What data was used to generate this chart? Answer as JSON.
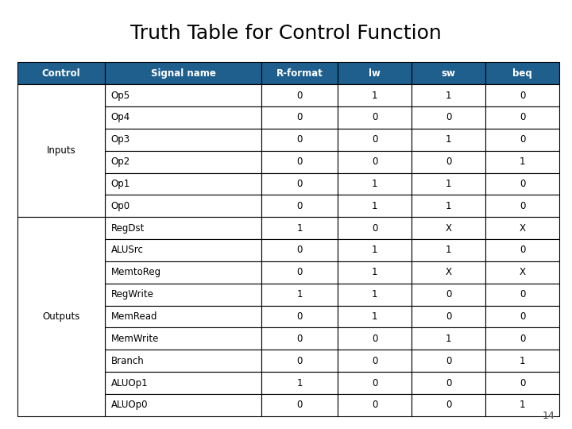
{
  "title": "Truth Table for Control Function",
  "page_number": "14",
  "header_bg": "#1e5f8e",
  "header_fg": "#ffffff",
  "cell_bg": "#ffffff",
  "border_color": "#000000",
  "title_color": "#000000",
  "col_headers": [
    "Control",
    "Signal name",
    "R-format",
    "lw",
    "sw",
    "beq"
  ],
  "col_props": [
    0.155,
    0.275,
    0.135,
    0.13,
    0.13,
    0.13
  ],
  "rows": [
    {
      "signal": "Op5",
      "rformat": "0",
      "lw": "1",
      "sw": "1",
      "beq": "0"
    },
    {
      "signal": "Op4",
      "rformat": "0",
      "lw": "0",
      "sw": "0",
      "beq": "0"
    },
    {
      "signal": "Op3",
      "rformat": "0",
      "lw": "0",
      "sw": "1",
      "beq": "0"
    },
    {
      "signal": "Op2",
      "rformat": "0",
      "lw": "0",
      "sw": "0",
      "beq": "1"
    },
    {
      "signal": "Op1",
      "rformat": "0",
      "lw": "1",
      "sw": "1",
      "beq": "0"
    },
    {
      "signal": "Op0",
      "rformat": "0",
      "lw": "1",
      "sw": "1",
      "beq": "0"
    },
    {
      "signal": "RegDst",
      "rformat": "1",
      "lw": "0",
      "sw": "X",
      "beq": "X"
    },
    {
      "signal": "ALUSrc",
      "rformat": "0",
      "lw": "1",
      "sw": "1",
      "beq": "0"
    },
    {
      "signal": "MemtoReg",
      "rformat": "0",
      "lw": "1",
      "sw": "X",
      "beq": "X"
    },
    {
      "signal": "RegWrite",
      "rformat": "1",
      "lw": "1",
      "sw": "0",
      "beq": "0"
    },
    {
      "signal": "MemRead",
      "rformat": "0",
      "lw": "1",
      "sw": "0",
      "beq": "0"
    },
    {
      "signal": "MemWrite",
      "rformat": "0",
      "lw": "0",
      "sw": "1",
      "beq": "0"
    },
    {
      "signal": "Branch",
      "rformat": "0",
      "lw": "0",
      "sw": "0",
      "beq": "1"
    },
    {
      "signal": "ALUOp1",
      "rformat": "1",
      "lw": "0",
      "sw": "0",
      "beq": "0"
    },
    {
      "signal": "ALUOp0",
      "rformat": "0",
      "lw": "0",
      "sw": "0",
      "beq": "1"
    }
  ],
  "inputs_span": [
    0,
    6
  ],
  "outputs_span": [
    6,
    15
  ]
}
